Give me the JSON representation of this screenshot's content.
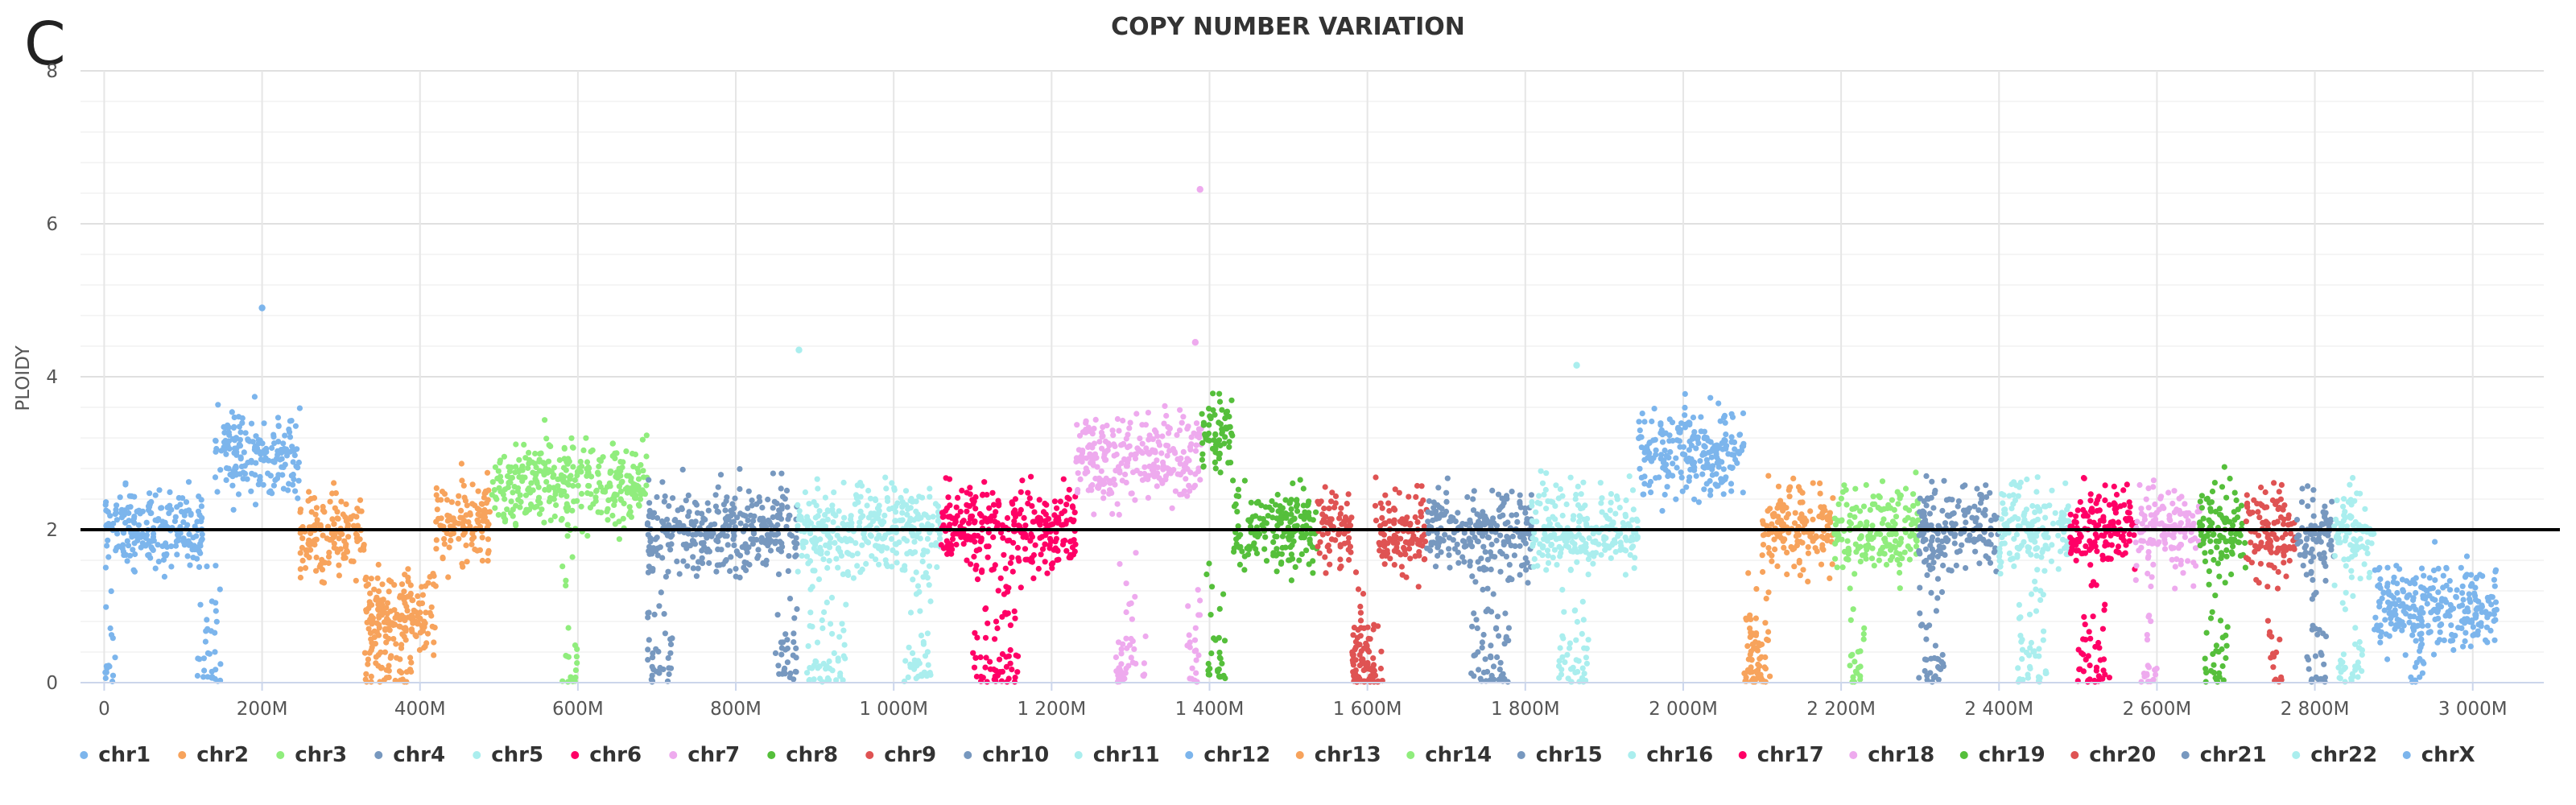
{
  "panel_label": "C",
  "chart_data": {
    "type": "scatter",
    "title": "COPY NUMBER VARIATION",
    "xlabel": "",
    "ylabel": "PLOIDY",
    "x_unit": "bp",
    "xlim": [
      -30000000,
      3090000000
    ],
    "ylim": [
      0,
      8
    ],
    "x_ticks": [
      0,
      200000000,
      400000000,
      600000000,
      800000000,
      1000000000,
      1200000000,
      1400000000,
      1600000000,
      1800000000,
      2000000000,
      2200000000,
      2400000000,
      2600000000,
      2800000000,
      3000000000
    ],
    "x_tick_labels": [
      "0",
      "200M",
      "400M",
      "600M",
      "800M",
      "1 000M",
      "1 200M",
      "1 400M",
      "1 600M",
      "1 800M",
      "2 000M",
      "2 200M",
      "2 400M",
      "2 600M",
      "2 800M",
      "3 000M"
    ],
    "y_ticks": [
      0,
      2,
      4,
      6,
      8
    ],
    "y_tick_labels": [
      "0",
      "2",
      "4",
      "6",
      "8"
    ],
    "reference_line_y": 2,
    "grid": true,
    "legend_position": "bottom",
    "series": [
      {
        "name": "chr1",
        "color": "#7cb5ec",
        "x_range": [
          0,
          248000000
        ],
        "segments": [
          [
            0,
            125000000,
            2.0
          ],
          [
            140000000,
            248000000,
            3.0
          ]
        ],
        "dropouts": [
          [
            0,
            15000000
          ],
          [
            118000000,
            148000000
          ]
        ]
      },
      {
        "name": "chr2",
        "color": "#f7a35c",
        "x_range": [
          248000000,
          490000000
        ],
        "segments": [
          [
            248000000,
            330000000,
            1.95
          ],
          [
            330000000,
            360000000,
            0.9
          ],
          [
            360000000,
            420000000,
            0.9
          ],
          [
            420000000,
            490000000,
            2.1
          ]
        ],
        "dropouts": [
          [
            330000000,
            390000000
          ]
        ]
      },
      {
        "name": "chr3",
        "color": "#90ed7d",
        "x_range": [
          490000000,
          688000000
        ],
        "segments": [
          [
            490000000,
            580000000,
            2.6
          ],
          [
            580000000,
            688000000,
            2.6
          ]
        ],
        "dropouts": [
          [
            580000000,
            600000000
          ]
        ]
      },
      {
        "name": "chr4",
        "color": "#7798bf",
        "x_range": [
          688000000,
          878000000
        ],
        "segments": [
          [
            688000000,
            878000000,
            2.0
          ]
        ],
        "dropouts": [
          [
            688000000,
            720000000
          ],
          [
            850000000,
            878000000
          ]
        ]
      },
      {
        "name": "chr5",
        "color": "#aaeeee",
        "x_range": [
          878000000,
          1060000000
        ],
        "segments": [
          [
            878000000,
            1060000000,
            2.0
          ]
        ],
        "dropouts": [
          [
            890000000,
            940000000
          ],
          [
            1010000000,
            1050000000
          ]
        ]
      },
      {
        "name": "chr6",
        "color": "#ff0066",
        "x_range": [
          1060000000,
          1231000000
        ],
        "segments": [
          [
            1060000000,
            1231000000,
            2.0
          ]
        ],
        "dropouts": [
          [
            1100000000,
            1160000000
          ]
        ]
      },
      {
        "name": "chr7",
        "color": "#eeaaee",
        "x_range": [
          1231000000,
          1390000000
        ],
        "segments": [
          [
            1231000000,
            1390000000,
            2.95
          ]
        ],
        "dropouts": [
          [
            1280000000,
            1320000000
          ],
          [
            1370000000,
            1390000000
          ]
        ]
      },
      {
        "name": "chr8",
        "color": "#55bf3b",
        "x_range": [
          1390000000,
          1536000000
        ],
        "segments": [
          [
            1390000000,
            1430000000,
            3.3
          ],
          [
            1430000000,
            1536000000,
            2.0
          ]
        ],
        "dropouts": [
          [
            1395000000,
            1420000000
          ]
        ]
      },
      {
        "name": "chr9",
        "color": "#df5353",
        "x_range": [
          1536000000,
          1675000000
        ],
        "segments": [
          [
            1536000000,
            1580000000,
            2.0
          ],
          [
            1580000000,
            1610000000,
            0.3
          ],
          [
            1610000000,
            1675000000,
            2.0
          ]
        ],
        "dropouts": [
          [
            1580000000,
            1620000000
          ]
        ]
      },
      {
        "name": "chr10",
        "color": "#7798bf",
        "x_range": [
          1675000000,
          1808000000
        ],
        "segments": [
          [
            1675000000,
            1808000000,
            2.0
          ]
        ],
        "dropouts": [
          [
            1730000000,
            1780000000
          ]
        ]
      },
      {
        "name": "chr11",
        "color": "#aaeeee",
        "x_range": [
          1808000000,
          1943000000
        ],
        "segments": [
          [
            1808000000,
            1943000000,
            2.0
          ]
        ],
        "dropouts": [
          [
            1840000000,
            1880000000
          ]
        ]
      },
      {
        "name": "chr12",
        "color": "#7cb5ec",
        "x_range": [
          1943000000,
          2077000000
        ],
        "segments": [
          [
            1943000000,
            2077000000,
            3.0
          ]
        ],
        "dropouts": []
      },
      {
        "name": "chr13",
        "color": "#f7a35c",
        "x_range": [
          2077000000,
          2191000000
        ],
        "segments": [
          [
            2077000000,
            2100000000,
            0.3
          ],
          [
            2100000000,
            2191000000,
            2.0
          ]
        ],
        "dropouts": [
          [
            2077000000,
            2110000000
          ]
        ]
      },
      {
        "name": "chr14",
        "color": "#90ed7d",
        "x_range": [
          2191000000,
          2298000000
        ],
        "segments": [
          [
            2191000000,
            2298000000,
            2.0
          ]
        ],
        "dropouts": [
          [
            2210000000,
            2230000000
          ]
        ]
      },
      {
        "name": "chr15",
        "color": "#7798bf",
        "x_range": [
          2298000000,
          2400000000
        ],
        "segments": [
          [
            2298000000,
            2400000000,
            2.0
          ]
        ],
        "dropouts": [
          [
            2298000000,
            2330000000
          ]
        ]
      },
      {
        "name": "chr16",
        "color": "#aaeeee",
        "x_range": [
          2400000000,
          2490000000
        ],
        "segments": [
          [
            2400000000,
            2490000000,
            2.0
          ]
        ],
        "dropouts": [
          [
            2420000000,
            2460000000
          ]
        ]
      },
      {
        "name": "chr17",
        "color": "#ff0066",
        "x_range": [
          2490000000,
          2573000000
        ],
        "segments": [
          [
            2490000000,
            2573000000,
            2.0
          ]
        ],
        "dropouts": [
          [
            2500000000,
            2540000000
          ]
        ]
      },
      {
        "name": "chr18",
        "color": "#eeaaee",
        "x_range": [
          2573000000,
          2654000000
        ],
        "segments": [
          [
            2573000000,
            2654000000,
            2.0
          ]
        ],
        "dropouts": [
          [
            2580000000,
            2600000000
          ]
        ]
      },
      {
        "name": "chr19",
        "color": "#55bf3b",
        "x_range": [
          2654000000,
          2713000000
        ],
        "segments": [
          [
            2654000000,
            2713000000,
            2.0
          ]
        ],
        "dropouts": [
          [
            2660000000,
            2690000000
          ]
        ]
      },
      {
        "name": "chr20",
        "color": "#df5353",
        "x_range": [
          2713000000,
          2777000000
        ],
        "segments": [
          [
            2713000000,
            2777000000,
            2.0
          ]
        ],
        "dropouts": [
          [
            2740000000,
            2760000000
          ]
        ]
      },
      {
        "name": "chr21",
        "color": "#7798bf",
        "x_range": [
          2777000000,
          2824000000
        ],
        "segments": [
          [
            2777000000,
            2824000000,
            2.0
          ]
        ],
        "dropouts": [
          [
            2790000000,
            2815000000
          ]
        ]
      },
      {
        "name": "chr22",
        "color": "#aaeeee",
        "x_range": [
          2824000000,
          2875000000
        ],
        "segments": [
          [
            2824000000,
            2875000000,
            2.0
          ]
        ],
        "dropouts": [
          [
            2830000000,
            2860000000
          ]
        ]
      },
      {
        "name": "chrX",
        "color": "#7cb5ec",
        "x_range": [
          2875000000,
          3031000000
        ],
        "segments": [
          [
            2875000000,
            3031000000,
            1.0
          ]
        ],
        "dropouts": [
          [
            2920000000,
            2940000000
          ]
        ]
      }
    ],
    "outliers": [
      {
        "x": 200000000,
        "y": 4.9
      },
      {
        "x": 1388000000,
        "y": 6.45
      },
      {
        "x": 1382000000,
        "y": 4.45
      },
      {
        "x": 880000000,
        "y": 4.35
      },
      {
        "x": 1865000000,
        "y": 4.15
      }
    ]
  }
}
